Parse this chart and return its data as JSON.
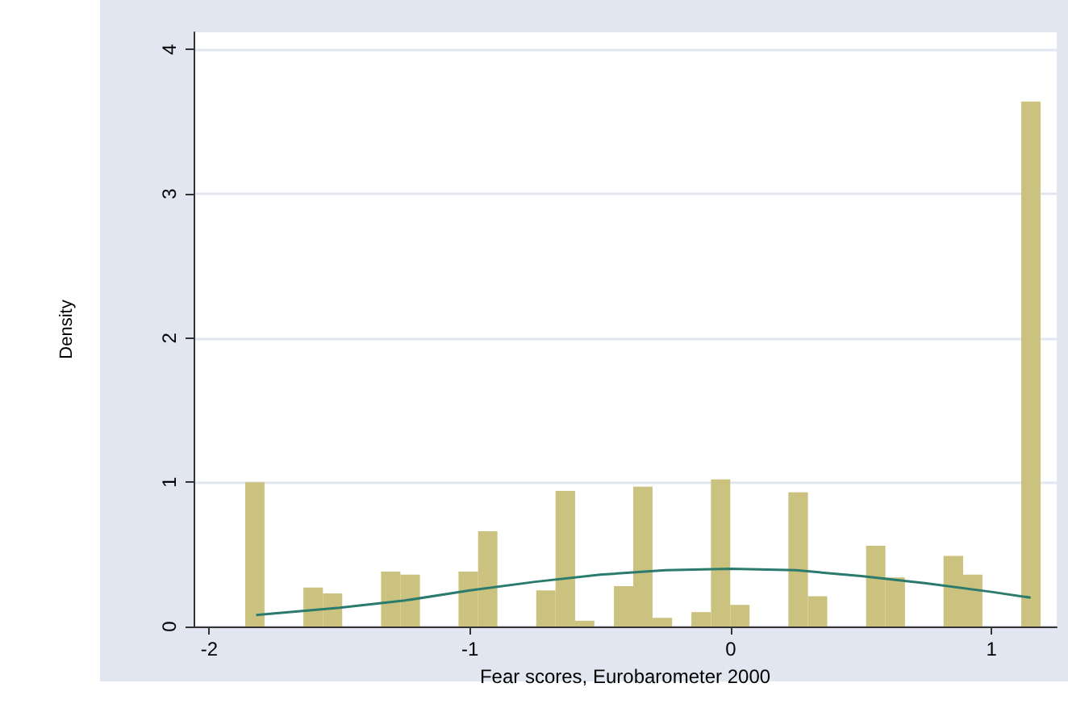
{
  "chart_data": {
    "type": "histogram",
    "xlabel": "Fear scores, Eurobarometer 2000",
    "ylabel": "Density",
    "bins": [
      -1.862,
      -1.788,
      -1.713,
      -1.639,
      -1.564,
      -1.49,
      -1.416,
      -1.341,
      -1.267,
      -1.192,
      -1.118,
      -1.044,
      -0.969,
      -0.895,
      -0.82,
      -0.746,
      -0.672,
      -0.597,
      -0.523,
      -0.448,
      -0.374,
      -0.3,
      -0.225,
      -0.151,
      -0.076,
      -0.002,
      0.072,
      0.147,
      0.221,
      0.296,
      0.37,
      0.444,
      0.519,
      0.593,
      0.668,
      0.742,
      0.816,
      0.891,
      0.965,
      1.04,
      1.114,
      1.188
    ],
    "values": [
      1.0,
      0,
      0,
      0.27,
      0.23,
      0,
      0,
      0.38,
      0.36,
      0,
      0,
      0.38,
      0.66,
      0,
      0,
      0.25,
      0.94,
      0.04,
      0,
      0.28,
      0.97,
      0.06,
      0,
      0.1,
      1.02,
      0.15,
      0,
      0,
      0.93,
      0.21,
      0,
      0,
      0.56,
      0.34,
      0,
      0,
      0.49,
      0.36,
      0,
      0,
      3.64
    ],
    "color": "#cbc27f",
    "series": [
      {
        "type": "line",
        "color": "#2a7a6e",
        "x": [
          -1.82,
          -1.5,
          -1.25,
          -1.0,
          -0.75,
          -0.5,
          -0.25,
          0,
          0.25,
          0.5,
          0.75,
          1.0,
          1.15
        ],
        "values": [
          0.08,
          0.13,
          0.18,
          0.25,
          0.31,
          0.36,
          0.39,
          0.4,
          0.39,
          0.35,
          0.3,
          0.24,
          0.2
        ]
      }
    ],
    "xlim": [
      -2.06,
      1.25
    ],
    "xticks": [
      -2,
      -1,
      0,
      1
    ],
    "ylim": [
      0,
      4.12
    ],
    "yticks": [
      0,
      1,
      2,
      3,
      4
    ],
    "grid": "y",
    "marker": "none"
  }
}
